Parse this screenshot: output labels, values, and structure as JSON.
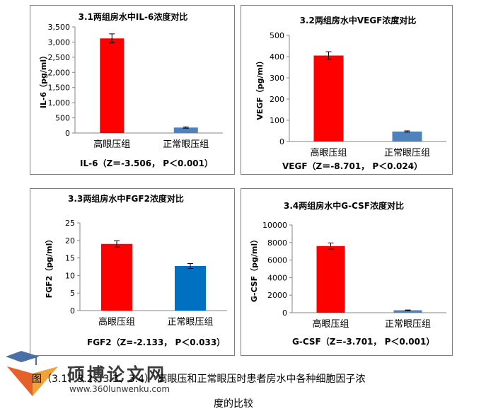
{
  "chart_data": [
    {
      "type": "bar",
      "title": "3.1两组房水中IL-6浓度对比",
      "ylabel": "IL-6（pg/ml）",
      "categories": [
        "高眼压组",
        "正常眼压组"
      ],
      "values": [
        3120,
        180
      ],
      "errors": [
        150,
        20
      ],
      "colors": [
        "#ff0000",
        "#4f81bd"
      ],
      "ylim": [
        0,
        3500
      ],
      "yticks": [
        "0",
        "500",
        "1,000",
        "1,500",
        "2,000",
        "2,500",
        "3,000",
        "3,500"
      ],
      "stat": "IL-6（Z＝-3.506， P＜0.001）"
    },
    {
      "type": "bar",
      "title": "3.2两组房水中VEGF浓度对比",
      "ylabel": "VEGF（pg/ml）",
      "categories": [
        "高眼压组",
        "正常眼压组"
      ],
      "values": [
        405,
        47
      ],
      "errors": [
        18,
        3
      ],
      "colors": [
        "#ff0000",
        "#4f81bd"
      ],
      "ylim": [
        0,
        500
      ],
      "yticks": [
        "0",
        "100",
        "200",
        "300",
        "400",
        "500"
      ],
      "stat": "VEGF（Z＝-8.701， P＜0.024）"
    },
    {
      "type": "bar",
      "title": "3.3两组房水中FGF2浓度对比",
      "ylabel": "FGF2（pg/ml）",
      "categories": [
        "高眼压组",
        "正常眼压组"
      ],
      "values": [
        19,
        12.7
      ],
      "errors": [
        0.9,
        0.7
      ],
      "colors": [
        "#ff0000",
        "#0070c0"
      ],
      "ylim": [
        0,
        25
      ],
      "yticks": [
        "0",
        "5",
        "10",
        "15",
        "20",
        "25"
      ],
      "stat": "FGF2（Z=-2.133， P＜0.033）"
    },
    {
      "type": "bar",
      "title": "3.4两组房水中G-CSF浓度对比",
      "ylabel": "G-CSF（pg/ml）",
      "categories": [
        "高眼压组",
        "正常眼压组"
      ],
      "values": [
        7600,
        280
      ],
      "errors": [
        350,
        30
      ],
      "colors": [
        "#ff0000",
        "#4f81bd"
      ],
      "ylim": [
        0,
        10000
      ],
      "yticks": [
        "0",
        "2000",
        "4000",
        "6000",
        "8000",
        "10000"
      ],
      "stat": "G-CSF（Z=-3.701， P＜0.001）"
    }
  ],
  "caption": {
    "line1": "图（3.1、3.2、3.3、3.4）  高眼压和正常眼压时患者房水中各种细胞因子浓",
    "line2": "度的比较"
  },
  "watermark": {
    "text": "硕博论文网",
    "url": "www.360lunwenku.com"
  }
}
